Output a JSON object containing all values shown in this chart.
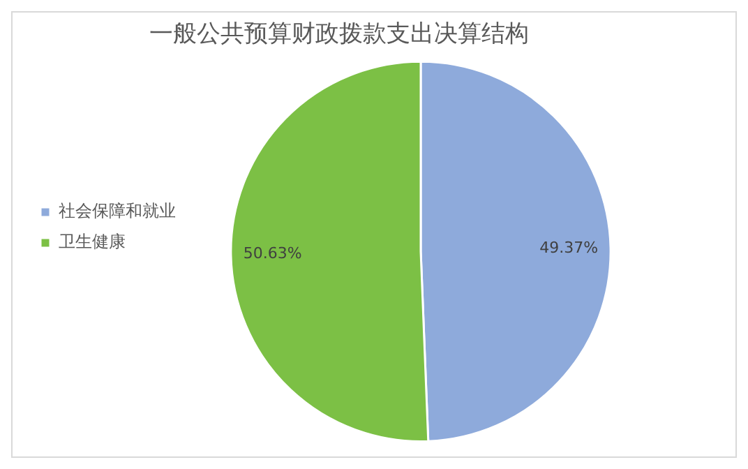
{
  "chart_data": {
    "type": "pie",
    "title": "一般公共预算财政拨款支出决算结构",
    "categories": [
      "社会保障和就业",
      "卫生健康"
    ],
    "values": [
      49.37,
      50.63
    ],
    "colors": [
      "#8eaadb",
      "#7cc045"
    ],
    "value_labels": [
      "49.37%",
      "50.63%"
    ],
    "legend": "left"
  }
}
